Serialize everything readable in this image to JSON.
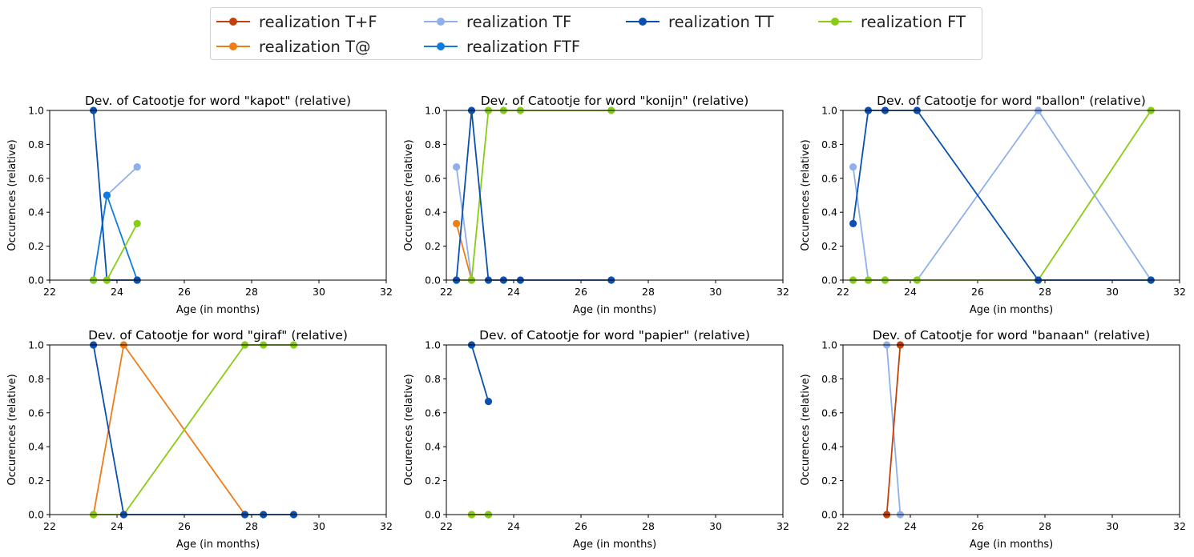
{
  "colors": {
    "T+F": "#c2410c",
    "T@": "#f07c16",
    "TF": "#8fb0ea",
    "FTF": "#0f7be0",
    "TT": "#0b4fb0",
    "FT": "#88cc14"
  },
  "legend": [
    {
      "key": "T+F",
      "label": "realization T+F"
    },
    {
      "key": "T@",
      "label": "realization T@"
    },
    {
      "key": "TF",
      "label": "realization TF"
    },
    {
      "key": "FTF",
      "label": "realization FTF"
    },
    {
      "key": "TT",
      "label": "realization TT"
    },
    {
      "key": "FT",
      "label": "realization FT"
    }
  ],
  "chart_data": [
    {
      "type": "line",
      "title": "Dev. of Catootje for word \"kapot\" (relative)",
      "xlabel": "Age (in months)",
      "ylabel": "Occurences (relative)",
      "xlim": [
        22,
        32
      ],
      "ylim": [
        0,
        1
      ],
      "xticks": [
        "22",
        "24",
        "26",
        "28",
        "30",
        "32"
      ],
      "yticks": [
        "0.0",
        "0.2",
        "0.4",
        "0.6",
        "0.8",
        "1.0"
      ],
      "series": [
        {
          "key": "TF",
          "x": [
            23.3,
            23.7,
            24.6
          ],
          "y": [
            0,
            0.5,
            0.667
          ]
        },
        {
          "key": "FTF",
          "x": [
            23.3,
            23.7,
            24.6
          ],
          "y": [
            0,
            0.5,
            0
          ]
        },
        {
          "key": "TT",
          "x": [
            23.3,
            23.7,
            24.6
          ],
          "y": [
            1,
            0,
            0
          ]
        },
        {
          "key": "FT",
          "x": [
            23.3,
            23.7,
            24.6
          ],
          "y": [
            0,
            0,
            0.333
          ]
        }
      ]
    },
    {
      "type": "line",
      "title": "Dev. of Catootje for word \"konijn\" (relative)",
      "xlabel": "Age (in months)",
      "ylabel": "Occurences (relative)",
      "xlim": [
        22,
        32
      ],
      "ylim": [
        0,
        1
      ],
      "xticks": [
        "22",
        "24",
        "26",
        "28",
        "30",
        "32"
      ],
      "yticks": [
        "0.0",
        "0.2",
        "0.4",
        "0.6",
        "0.8",
        "1.0"
      ],
      "series": [
        {
          "key": "T@",
          "x": [
            22.3,
            22.75
          ],
          "y": [
            0.333,
            0
          ]
        },
        {
          "key": "TF",
          "x": [
            22.3,
            22.75
          ],
          "y": [
            0.667,
            0
          ]
        },
        {
          "key": "FT",
          "x": [
            22.3,
            22.75,
            23.25,
            23.7,
            24.2,
            26.9
          ],
          "y": [
            0,
            0,
            1,
            1,
            1,
            1
          ]
        },
        {
          "key": "TT",
          "x": [
            22.3,
            22.75,
            23.25,
            23.7,
            24.2,
            26.9
          ],
          "y": [
            0,
            1,
            0,
            0,
            0,
            0
          ]
        }
      ]
    },
    {
      "type": "line",
      "title": "Dev. of Catootje for word \"ballon\" (relative)",
      "xlabel": "Age (in months)",
      "ylabel": "Occurences (relative)",
      "xlim": [
        22,
        32
      ],
      "ylim": [
        0,
        1
      ],
      "xticks": [
        "22",
        "24",
        "26",
        "28",
        "30",
        "32"
      ],
      "yticks": [
        "0.0",
        "0.2",
        "0.4",
        "0.6",
        "0.8",
        "1.0"
      ],
      "series": [
        {
          "key": "TF",
          "x": [
            22.3,
            22.75,
            23.25,
            24.2,
            27.8,
            31.15
          ],
          "y": [
            0.667,
            0,
            0,
            0,
            1,
            0
          ]
        },
        {
          "key": "FT",
          "x": [
            22.3,
            22.75,
            23.25,
            24.2,
            27.8,
            31.15
          ],
          "y": [
            0,
            0,
            0,
            0,
            0,
            1
          ]
        },
        {
          "key": "TT",
          "x": [
            22.3,
            22.75,
            23.25,
            24.2,
            27.8,
            31.15
          ],
          "y": [
            0.333,
            1,
            1,
            1,
            0,
            0
          ]
        }
      ]
    },
    {
      "type": "line",
      "title": "Dev. of Catootje for word \"giraf\" (relative)",
      "xlabel": "Age (in months)",
      "ylabel": "Occurences (relative)",
      "xlim": [
        22,
        32
      ],
      "ylim": [
        0,
        1
      ],
      "xticks": [
        "22",
        "24",
        "26",
        "28",
        "30",
        "32"
      ],
      "yticks": [
        "0.0",
        "0.2",
        "0.4",
        "0.6",
        "0.8",
        "1.0"
      ],
      "series": [
        {
          "key": "T@",
          "x": [
            23.3,
            24.2,
            27.8
          ],
          "y": [
            0,
            1,
            0
          ]
        },
        {
          "key": "FT",
          "x": [
            23.3,
            24.2,
            27.8,
            28.35,
            29.25
          ],
          "y": [
            0,
            0,
            1,
            1,
            1
          ]
        },
        {
          "key": "TT",
          "x": [
            23.3,
            24.2,
            27.8,
            28.35,
            29.25
          ],
          "y": [
            1,
            0,
            0,
            0,
            0
          ]
        }
      ]
    },
    {
      "type": "line",
      "title": "Dev. of Catootje for word \"papier\" (relative)",
      "xlabel": "Age (in months)",
      "ylabel": "Occurences (relative)",
      "xlim": [
        22,
        32
      ],
      "ylim": [
        0,
        1
      ],
      "xticks": [
        "22",
        "24",
        "26",
        "28",
        "30",
        "32"
      ],
      "yticks": [
        "0.0",
        "0.2",
        "0.4",
        "0.6",
        "0.8",
        "1.0"
      ],
      "series": [
        {
          "key": "T@",
          "x": [
            22.75,
            23.25
          ],
          "y": [
            0,
            0
          ]
        },
        {
          "key": "FT",
          "x": [
            22.75,
            23.25
          ],
          "y": [
            0,
            0
          ]
        },
        {
          "key": "TT",
          "x": [
            22.75,
            23.25
          ],
          "y": [
            1,
            0.667
          ]
        }
      ]
    },
    {
      "type": "line",
      "title": "Dev. of Catootje for word \"banaan\" (relative)",
      "xlabel": "Age (in months)",
      "ylabel": "Occurences (relative)",
      "xlim": [
        22,
        32
      ],
      "ylim": [
        0,
        1
      ],
      "xticks": [
        "22",
        "24",
        "26",
        "28",
        "30",
        "32"
      ],
      "yticks": [
        "0.0",
        "0.2",
        "0.4",
        "0.6",
        "0.8",
        "1.0"
      ],
      "series": [
        {
          "key": "TF",
          "x": [
            23.3,
            23.7
          ],
          "y": [
            1,
            0
          ]
        },
        {
          "key": "T+F",
          "x": [
            23.3,
            23.7
          ],
          "y": [
            0,
            1
          ]
        }
      ]
    }
  ]
}
